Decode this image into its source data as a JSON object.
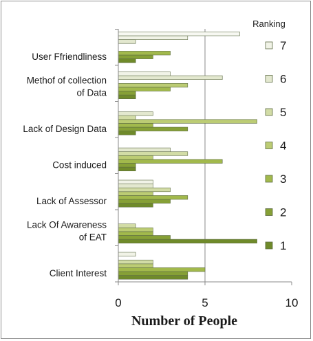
{
  "chart_data": {
    "type": "bar",
    "orientation": "horizontal",
    "categories": [
      "Client Interest",
      "Lack Of Awareness of EAT",
      "Lack of Assessor",
      "Cost induced",
      "Lack of Design Data",
      "Methof of collection of Data",
      "User Ffriendliness"
    ],
    "category_lines": [
      [
        "Client Interest"
      ],
      [
        "Lack Of Awareness",
        "of EAT"
      ],
      [
        "Lack of Assessor"
      ],
      [
        "Cost induced"
      ],
      [
        "Lack of Design Data"
      ],
      [
        "Methof of collection",
        "of Data"
      ],
      [
        "User Ffriendliness"
      ]
    ],
    "series": [
      {
        "name": "1",
        "values": [
          4,
          8,
          2,
          1,
          1,
          1,
          1
        ]
      },
      {
        "name": "2",
        "values": [
          4,
          3,
          3,
          1,
          4,
          1,
          2
        ]
      },
      {
        "name": "3",
        "values": [
          5,
          2,
          4,
          6,
          2,
          3,
          3
        ]
      },
      {
        "name": "4",
        "values": [
          2,
          2,
          2,
          2,
          8,
          4,
          0
        ]
      },
      {
        "name": "5",
        "values": [
          2,
          1,
          3,
          4,
          1,
          0,
          0
        ]
      },
      {
        "name": "6",
        "values": [
          0,
          0,
          2,
          3,
          2,
          6,
          1
        ]
      },
      {
        "name": "7",
        "values": [
          1,
          0,
          2,
          0,
          0,
          3,
          4
        ]
      },
      {
        "name": "",
        "values": [
          0,
          0,
          0,
          0,
          0,
          0,
          7
        ]
      }
    ],
    "xlim": [
      0,
      10
    ],
    "xticks": [
      "0",
      "5",
      "10"
    ],
    "xlabel": "Number of People",
    "ylabel": "",
    "title": "",
    "grid": "vertical line at 5",
    "legend": {
      "title": "Ranking",
      "placement": "right",
      "entries": [
        "7",
        "6",
        "5",
        "4",
        "3",
        "2",
        "1"
      ]
    },
    "colors": {
      "1": "#6f8a2a",
      "2": "#86a036",
      "3": "#a2b94c",
      "4": "#bccc74",
      "5": "#d2dca6",
      "6": "#e3e8cf",
      "7": "#f1f3e7",
      "8": "#f7f8f2",
      "stroke": "#5d6b44",
      "axis": "#8a8a8a"
    }
  }
}
